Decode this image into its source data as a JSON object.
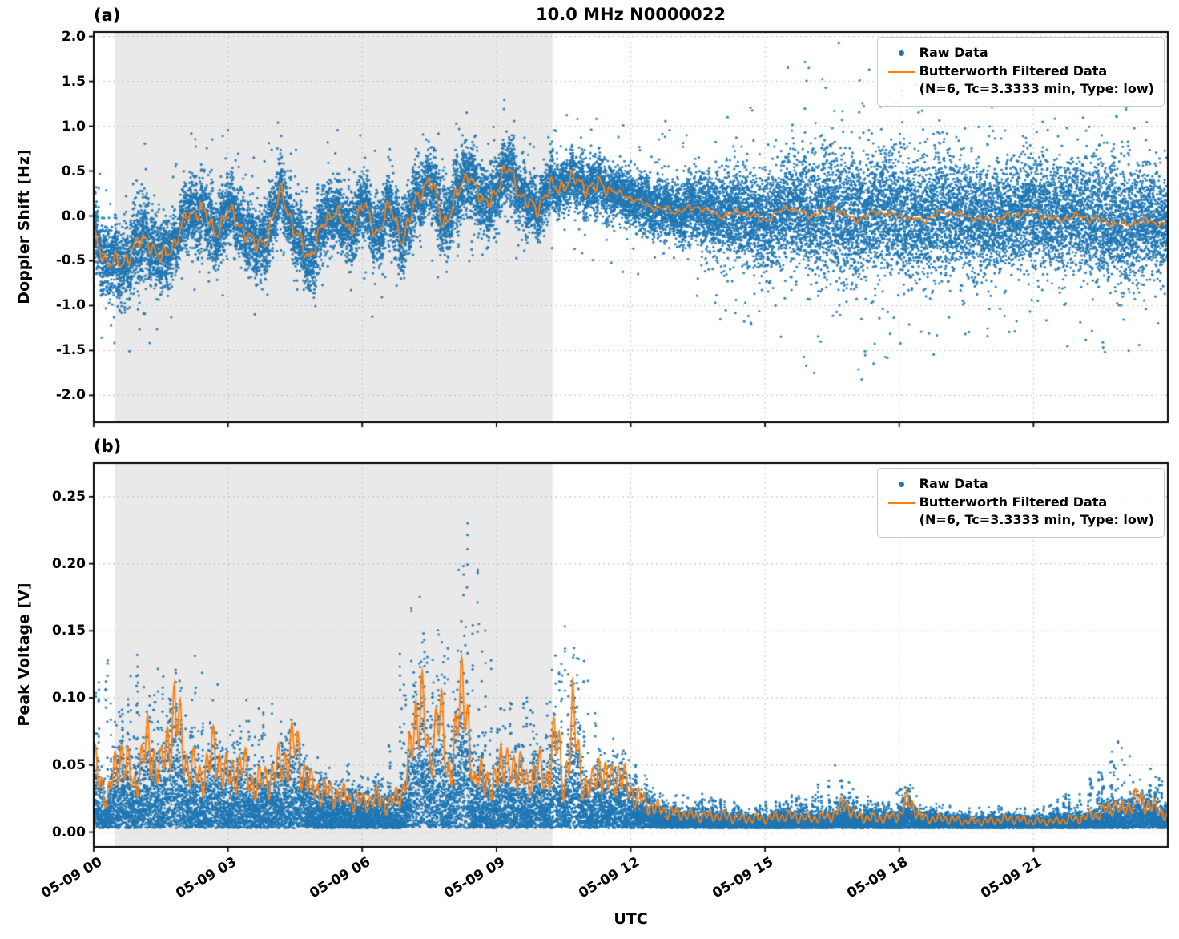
{
  "title": "10.0 MHz N0000022",
  "xlabel": "UTC",
  "panels": [
    {
      "label": "(a)",
      "ylabel": "Doppler Shift [Hz]"
    },
    {
      "label": "(b)",
      "ylabel": "Peak Voltage [V]"
    }
  ],
  "legend": {
    "raw": "Raw Data",
    "filtered_line1": "Butterworth Filtered Data",
    "filtered_line2": "(N=6, Tc=3.3333 min, Type: low)"
  },
  "colors": {
    "raw": "#1f77b4",
    "filtered": "#ff7f0e",
    "shade": "#e9e9e9",
    "grid": "#c4c4c4",
    "spine": "#000000"
  },
  "chart_data": [
    {
      "type": "scatter",
      "panel_label": "(a)",
      "title": "10.0 MHz N0000022",
      "xlabel": "UTC",
      "ylabel": "Doppler Shift [Hz]",
      "xlim_hours": [
        0,
        24
      ],
      "ylim": [
        -2.3,
        2.05
      ],
      "xticks": {
        "hours": [
          0,
          3,
          6,
          9,
          12,
          15,
          18,
          21
        ],
        "labels": [
          "05-09 00",
          "05-09 03",
          "05-09 06",
          "05-09 09",
          "05-09 12",
          "05-09 15",
          "05-09 18",
          "05-09 21"
        ]
      },
      "yticks": {
        "values": [
          2.0,
          1.5,
          1.0,
          0.5,
          0.0,
          -0.5,
          -1.0,
          -1.5,
          -2.0
        ],
        "labels": [
          "2.0",
          "1.5",
          "1.0",
          "0.5",
          "0.0",
          "-0.5",
          "-1.0",
          "-1.5",
          "-2.0"
        ]
      },
      "shaded_region_hours": [
        0.47,
        10.25
      ],
      "grid": true,
      "legend_position": "upper right",
      "series": [
        {
          "name": "Raw Data",
          "plot": "scatter",
          "color": "#1f77b4",
          "envelope": {
            "t_hours": [
              0,
              0.5,
              1,
              1.5,
              2,
              2.5,
              3,
              3.5,
              4,
              4.5,
              5,
              5.5,
              6,
              6.5,
              7,
              7.5,
              8,
              8.5,
              9,
              9.5,
              10,
              10.5,
              11,
              11.5,
              12,
              12.5,
              13,
              13.5,
              14,
              14.5,
              15,
              15.5,
              16,
              16.5,
              17,
              17.5,
              18,
              18.5,
              19,
              19.5,
              20,
              20.5,
              21,
              21.5,
              22,
              22.5,
              23,
              23.5,
              24
            ],
            "band_halfwidth_hz": [
              0.35,
              0.4,
              0.45,
              0.4,
              0.35,
              0.4,
              0.35,
              0.35,
              0.4,
              0.35,
              0.4,
              0.35,
              0.35,
              0.35,
              0.4,
              0.35,
              0.4,
              0.4,
              0.35,
              0.35,
              0.3,
              0.3,
              0.3,
              0.3,
              0.3,
              0.35,
              0.35,
              0.4,
              0.45,
              0.5,
              0.55,
              0.6,
              0.65,
              0.7,
              0.7,
              0.7,
              0.7,
              0.65,
              0.65,
              0.6,
              0.6,
              0.6,
              0.6,
              0.6,
              0.6,
              0.65,
              0.6,
              0.6,
              0.55
            ],
            "outlier_max_hz": [
              0.9,
              1.0,
              1.1,
              1.0,
              0.9,
              1.0,
              0.9,
              0.9,
              1.0,
              1.0,
              0.9,
              0.9,
              1.0,
              0.9,
              1.0,
              0.9,
              0.9,
              0.9,
              0.8,
              0.8,
              0.8,
              0.8,
              0.9,
              0.9,
              0.9,
              1.0,
              1.0,
              1.1,
              1.2,
              1.3,
              1.4,
              1.6,
              1.9,
              2.0,
              1.9,
              1.8,
              1.8,
              1.6,
              1.5,
              1.4,
              1.4,
              1.5,
              1.4,
              1.5,
              1.4,
              1.5,
              1.4,
              1.5,
              1.3
            ]
          },
          "outlier_fraction": 0.02
        },
        {
          "name": "Butterworth Filtered Data (N=6, Tc=3.3333 min, Type: low)",
          "plot": "line",
          "color": "#ff7f0e",
          "t_hours": [
            0,
            0.3,
            0.6,
            0.9,
            1.2,
            1.5,
            1.8,
            2.1,
            2.4,
            2.7,
            3,
            3.3,
            3.6,
            3.9,
            4.2,
            4.5,
            4.8,
            5.1,
            5.4,
            5.7,
            6,
            6.3,
            6.6,
            6.9,
            7.2,
            7.5,
            7.8,
            8.1,
            8.4,
            8.7,
            9,
            9.3,
            9.6,
            9.9,
            10.2,
            10.5,
            10.8,
            11.1,
            11.4,
            11.7,
            12,
            12.5,
            13,
            13.5,
            14,
            14.5,
            15,
            15.5,
            16,
            16.5,
            17,
            17.5,
            18,
            18.5,
            19,
            19.5,
            20,
            20.5,
            21,
            21.5,
            22,
            22.5,
            23,
            23.5,
            24
          ],
          "y_hz": [
            -0.25,
            -0.5,
            -0.55,
            -0.35,
            -0.25,
            -0.5,
            -0.3,
            0.0,
            0.1,
            -0.2,
            0.05,
            -0.1,
            -0.35,
            -0.2,
            0.3,
            -0.2,
            -0.45,
            -0.15,
            0.1,
            -0.2,
            0.15,
            -0.2,
            0.1,
            -0.25,
            0.15,
            0.45,
            -0.1,
            0.2,
            0.5,
            0.1,
            0.3,
            0.55,
            0.15,
            0.1,
            0.3,
            0.35,
            0.4,
            0.3,
            0.35,
            0.25,
            0.2,
            0.1,
            0.05,
            0.1,
            0.0,
            0.05,
            -0.05,
            0.1,
            0.0,
            0.1,
            -0.05,
            0.05,
            0.0,
            -0.05,
            0.05,
            0.0,
            -0.05,
            0.0,
            0.05,
            -0.05,
            0.0,
            -0.05,
            -0.1,
            -0.05,
            -0.1
          ]
        }
      ]
    },
    {
      "type": "scatter",
      "panel_label": "(b)",
      "xlabel": "UTC",
      "ylabel": "Peak Voltage [V]",
      "xlim_hours": [
        0,
        24
      ],
      "ylim": [
        -0.011,
        0.275
      ],
      "xticks": {
        "hours": [
          0,
          3,
          6,
          9,
          12,
          15,
          18,
          21
        ],
        "labels": [
          "05-09 00",
          "05-09 03",
          "05-09 06",
          "05-09 09",
          "05-09 12",
          "05-09 15",
          "05-09 18",
          "05-09 21"
        ]
      },
      "yticks": {
        "values": [
          0.25,
          0.2,
          0.15,
          0.1,
          0.05,
          0.0
        ],
        "labels": [
          "0.25",
          "0.20",
          "0.15",
          "0.10",
          "0.05",
          "0.00"
        ]
      },
      "shaded_region_hours": [
        0.47,
        10.25
      ],
      "grid": true,
      "legend_position": "upper right",
      "series": [
        {
          "name": "Raw Data",
          "plot": "scatter",
          "color": "#1f77b4",
          "envelope": {
            "t_hours": [
              0,
              0.5,
              1,
              1.5,
              2,
              2.5,
              3,
              3.5,
              4,
              4.5,
              5,
              5.5,
              6,
              6.5,
              7,
              7.5,
              8,
              8.5,
              9,
              9.5,
              10,
              10.5,
              11,
              11.5,
              12,
              12.5,
              13,
              13.5,
              14,
              14.5,
              15,
              15.5,
              16,
              16.5,
              17,
              17.5,
              18,
              18.5,
              19,
              19.5,
              20,
              20.5,
              21,
              21.5,
              22,
              22.5,
              23,
              23.5,
              24
            ],
            "band_top_v": [
              0.16,
              0.12,
              0.15,
              0.185,
              0.14,
              0.16,
              0.1,
              0.1,
              0.115,
              0.08,
              0.06,
              0.055,
              0.05,
              0.06,
              0.19,
              0.18,
              0.19,
              0.26,
              0.13,
              0.1,
              0.12,
              0.17,
              0.13,
              0.09,
              0.06,
              0.04,
              0.03,
              0.03,
              0.028,
              0.025,
              0.025,
              0.03,
              0.03,
              0.055,
              0.035,
              0.025,
              0.045,
              0.025,
              0.02,
              0.02,
              0.02,
              0.02,
              0.02,
              0.025,
              0.04,
              0.05,
              0.08,
              0.055,
              0.035
            ]
          },
          "band_bottom_v": 0.003,
          "spike_fraction": 0.035
        },
        {
          "name": "Butterworth Filtered Data (N=6, Tc=3.3333 min, Type: low)",
          "plot": "line",
          "color": "#ff7f0e",
          "t_hours": [
            0,
            0.3,
            0.6,
            0.9,
            1.2,
            1.5,
            1.8,
            2.1,
            2.4,
            2.7,
            3,
            3.3,
            3.6,
            3.9,
            4.2,
            4.5,
            4.8,
            5.1,
            5.4,
            5.7,
            6,
            6.3,
            6.6,
            6.9,
            7.1,
            7.3,
            7.5,
            7.7,
            7.9,
            8.1,
            8.3,
            8.5,
            8.7,
            8.9,
            9.1,
            9.3,
            9.5,
            9.7,
            9.9,
            10.1,
            10.3,
            10.5,
            10.7,
            10.9,
            11.1,
            11.3,
            11.5,
            11.7,
            12,
            12.5,
            13,
            13.5,
            14,
            14.5,
            15,
            15.5,
            16,
            16.5,
            16.8,
            17,
            17.5,
            18,
            18.2,
            18.5,
            19,
            19.5,
            20,
            20.5,
            21,
            21.5,
            22,
            22.5,
            22.8,
            23,
            23.3,
            23.6,
            24
          ],
          "y_v": [
            0.05,
            0.025,
            0.06,
            0.035,
            0.065,
            0.045,
            0.09,
            0.05,
            0.04,
            0.06,
            0.04,
            0.05,
            0.035,
            0.04,
            0.05,
            0.065,
            0.035,
            0.03,
            0.028,
            0.025,
            0.022,
            0.025,
            0.02,
            0.03,
            0.06,
            0.11,
            0.045,
            0.1,
            0.04,
            0.075,
            0.11,
            0.03,
            0.05,
            0.025,
            0.06,
            0.04,
            0.055,
            0.03,
            0.055,
            0.03,
            0.08,
            0.03,
            0.085,
            0.04,
            0.03,
            0.05,
            0.035,
            0.045,
            0.03,
            0.018,
            0.014,
            0.012,
            0.012,
            0.01,
            0.01,
            0.012,
            0.01,
            0.012,
            0.022,
            0.012,
            0.01,
            0.012,
            0.025,
            0.01,
            0.01,
            0.008,
            0.008,
            0.01,
            0.008,
            0.008,
            0.01,
            0.014,
            0.02,
            0.016,
            0.025,
            0.02,
            0.012
          ]
        }
      ]
    }
  ]
}
